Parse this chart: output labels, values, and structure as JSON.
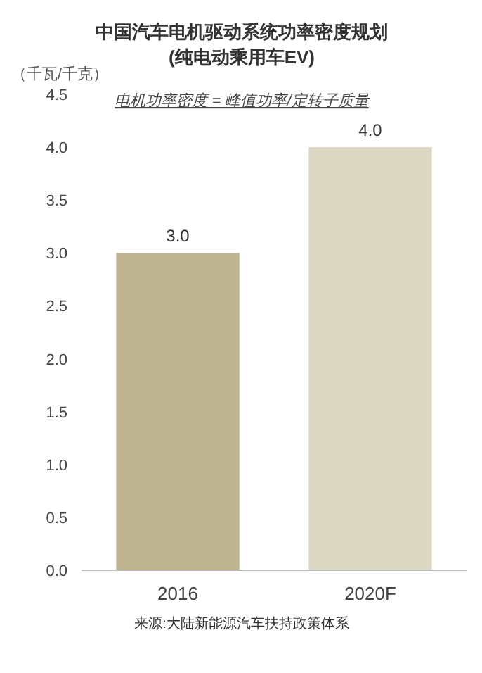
{
  "chart_data": {
    "type": "bar",
    "title": "中国汽车电机驱动系统功率密度规划",
    "subtitle": "(纯电动乘用车EV)",
    "ylabel": "（千瓦/千克）",
    "categories": [
      "2016",
      "2020F"
    ],
    "values": [
      3.0,
      4.0
    ],
    "colors": [
      "#bdb48f",
      "#ddd8c3"
    ],
    "value_labels": [
      "3.0",
      "4.0"
    ],
    "ylim": [
      0,
      4.5
    ],
    "yticks": [
      {
        "value": 0,
        "label": "0.0"
      },
      {
        "value": 0.5,
        "label": "0.5"
      },
      {
        "value": 1,
        "label": "1.0"
      },
      {
        "value": 1.5,
        "label": "1.5"
      },
      {
        "value": 2,
        "label": "2.0"
      },
      {
        "value": 2.5,
        "label": "2.5"
      },
      {
        "value": 3,
        "label": "3.0"
      },
      {
        "value": 3.5,
        "label": "3.5"
      },
      {
        "value": 4,
        "label": "4.0"
      },
      {
        "value": 4.5,
        "label": "4.5"
      }
    ],
    "grid": false,
    "annotations": [
      "电机功率密度 = 峰值功率/定转子质量",
      "来源:大陆新能源汽车扶持政策体系"
    ]
  }
}
